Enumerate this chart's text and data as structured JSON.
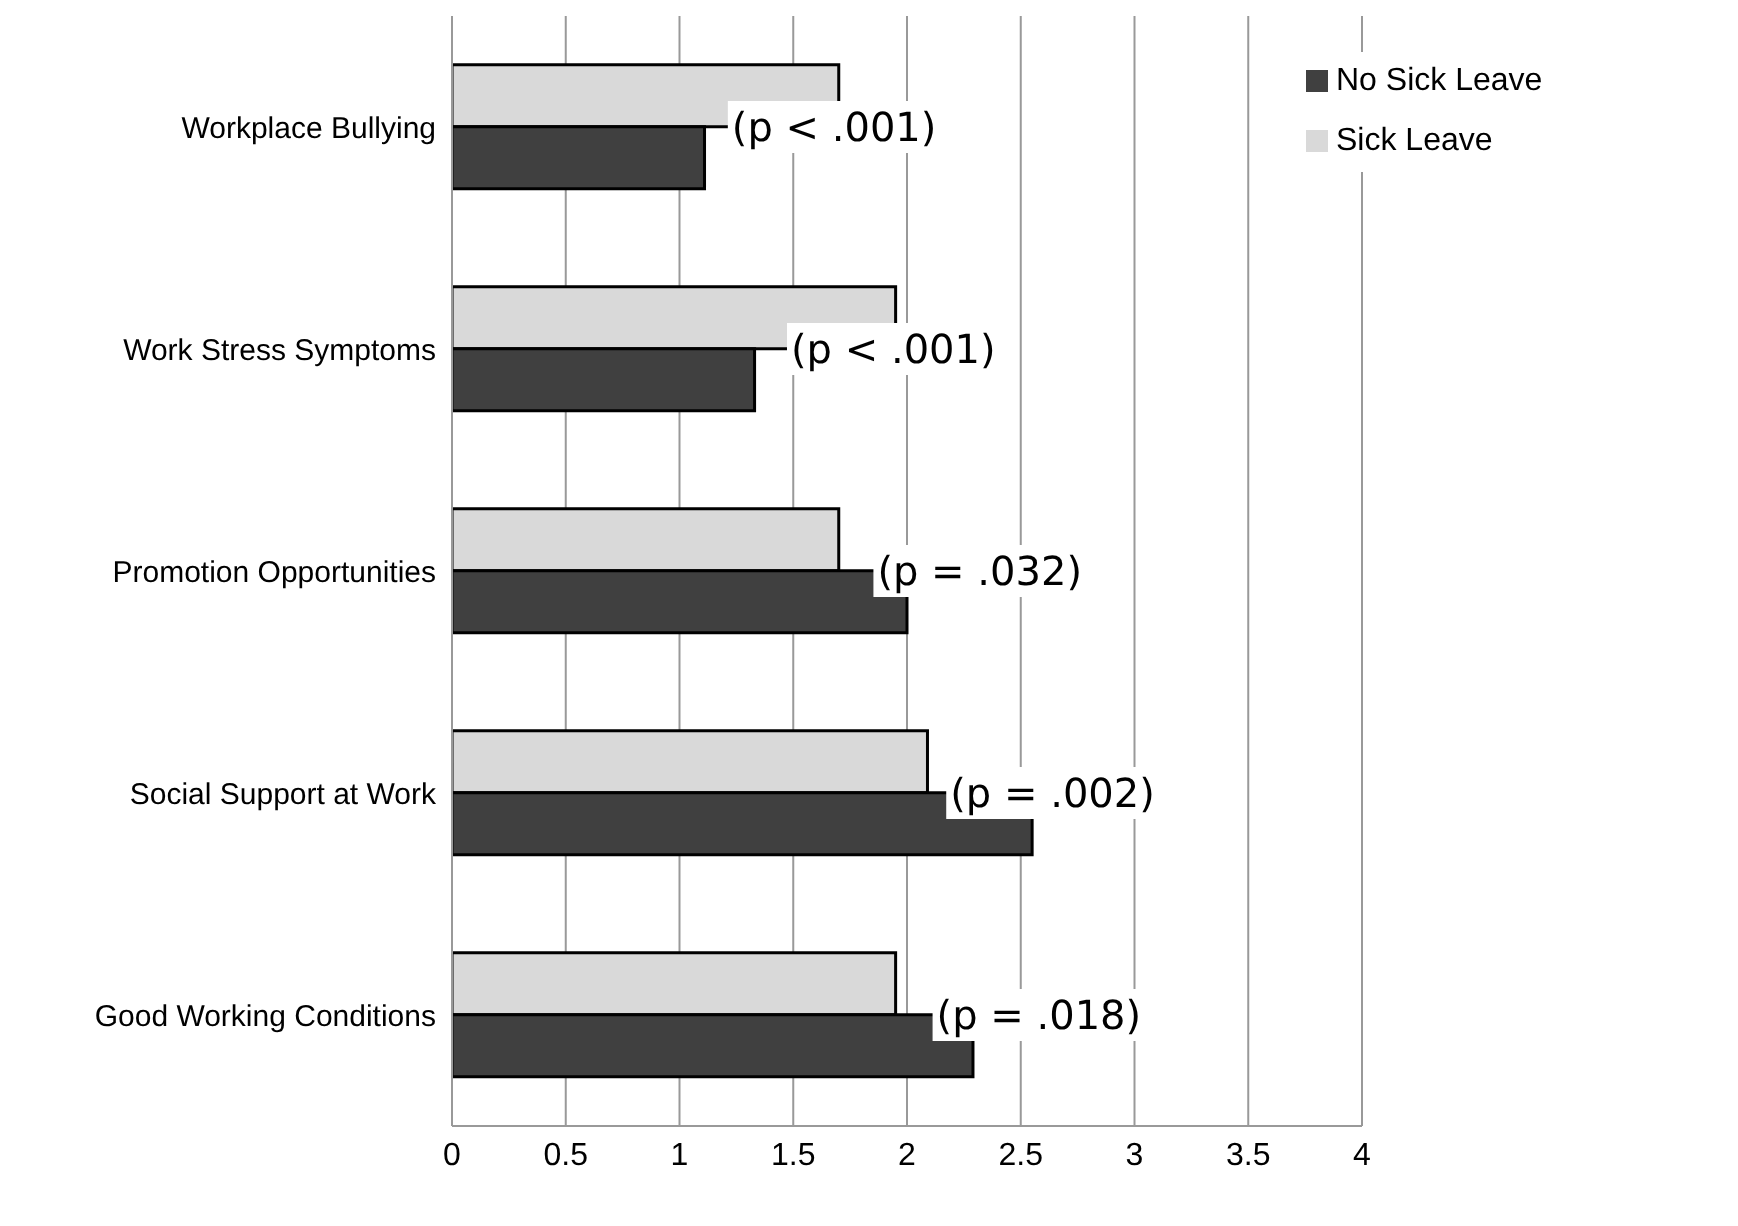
{
  "chart_data": {
    "type": "bar",
    "orientation": "horizontal",
    "categories": [
      "Workplace Bullying",
      "Work Stress Symptoms",
      "Promotion Opportunities",
      "Social Support at Work",
      "Good Working Conditions"
    ],
    "series": [
      {
        "name": "Sick Leave",
        "color": "#d9d9d9",
        "values": [
          1.7,
          1.95,
          1.7,
          2.09,
          1.95
        ]
      },
      {
        "name": "No Sick Leave",
        "color": "#404040",
        "values": [
          1.11,
          1.33,
          2.0,
          2.55,
          2.29
        ]
      }
    ],
    "xlim": [
      0,
      4
    ],
    "xticks": [
      0,
      0.5,
      1,
      1.5,
      2,
      2.5,
      3,
      3.5,
      4
    ],
    "grid": "x",
    "legend": "top right",
    "annotations": [
      {
        "text": "(p < .001)",
        "x": 1.23,
        "y": "Workplace Bullying"
      },
      {
        "text": "(p < .001)",
        "x": 1.49,
        "y": "Work Stress Symptoms"
      },
      {
        "text": "(p = .032)",
        "x": 1.87,
        "y": "Promotion Opportunities"
      },
      {
        "text": "(p =  .002)",
        "x": 2.19,
        "y": "Social Support at Work"
      },
      {
        "text": "(p =  .018)",
        "x": 2.13,
        "y": "Good Working Conditions"
      }
    ]
  }
}
